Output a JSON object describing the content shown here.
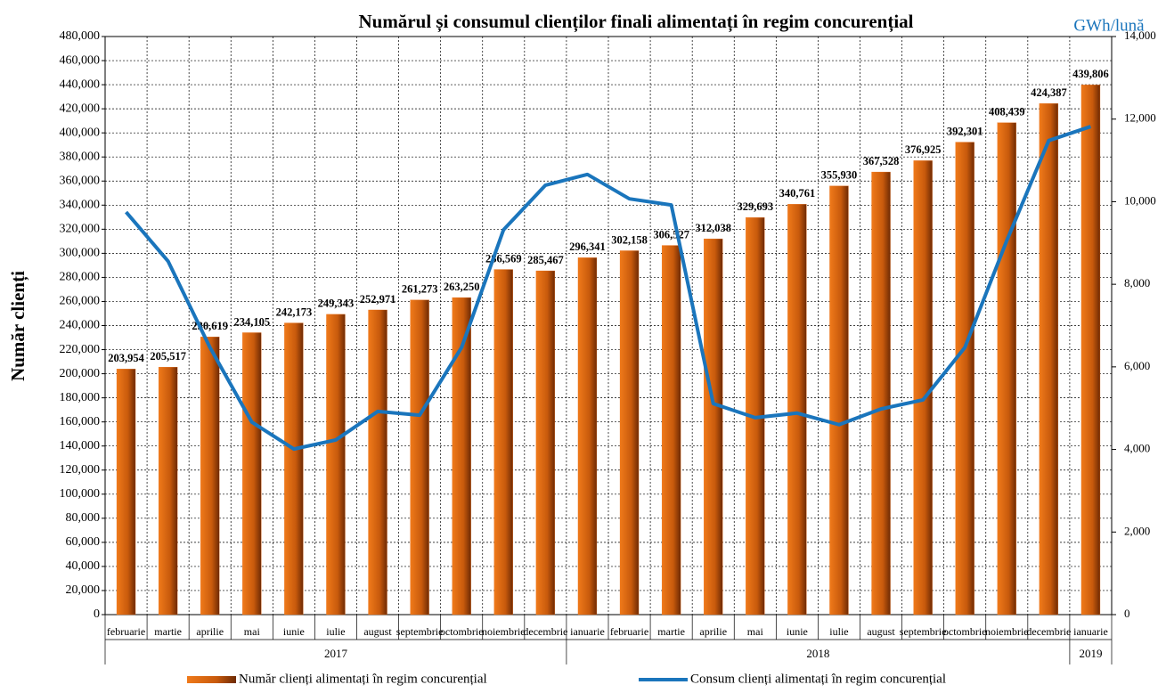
{
  "chart_data": {
    "type": "bar_line",
    "title": "Numărul și consumul clienților finali alimentați în regim concurențial",
    "ylabel": "Număr clienți",
    "y2label": "GWh/lună",
    "categories": [
      "februarie",
      "martie",
      "aprilie",
      "mai",
      "iunie",
      "iulie",
      "august",
      "septembrie",
      "octombrie",
      "noiembrie",
      "decembrie",
      "ianuarie",
      "februarie",
      "martie",
      "aprilie",
      "mai",
      "iunie",
      "iulie",
      "august",
      "septembrie",
      "octombrie",
      "noiembrie",
      "decembrie",
      "ianuarie"
    ],
    "year_groups": [
      {
        "label": "2017",
        "span": 11
      },
      {
        "label": "2018",
        "span": 12
      },
      {
        "label": "2019",
        "span": 1
      }
    ],
    "series": [
      {
        "name": "Număr clienți alimentați în regim concurențial",
        "color": "#e8680f",
        "kind": "bar",
        "values": [
          203954,
          205517,
          230619,
          234105,
          242173,
          249343,
          252971,
          261273,
          263250,
          286569,
          285467,
          296341,
          302158,
          306527,
          312038,
          329693,
          340761,
          355930,
          367528,
          376925,
          392301,
          408439,
          424387,
          439806
        ],
        "value_labels": [
          "203,954",
          "205,517",
          "230,619",
          "234,105",
          "242,173",
          "249,343",
          "252,971",
          "261,273",
          "263,250",
          "286,569",
          "285,467",
          "296,341",
          "302,158",
          "306,527",
          "312,038",
          "329,693",
          "340,761",
          "355,930",
          "367,528",
          "376,925",
          "392,301",
          "408,439",
          "424,387",
          "439,806"
        ]
      },
      {
        "name": "Consum clienți alimentați în regim concurențial",
        "color": "#1a75bc",
        "kind": "line",
        "axis": "y2",
        "values": [
          9750,
          8560,
          6470,
          4660,
          4010,
          4230,
          4920,
          4830,
          6470,
          9320,
          10400,
          10660,
          10070,
          9920,
          5110,
          4770,
          4880,
          4600,
          4980,
          5200,
          6470,
          9060,
          11480,
          11820
        ]
      }
    ],
    "ylim": [
      0,
      480000
    ],
    "yticks": [
      0,
      {
        "value": 20000,
        "label": "20,000"
      },
      {
        "value": 40000,
        "label": "40,000"
      },
      {
        "value": 60000,
        "label": "60,000"
      },
      {
        "value": 80000,
        "label": "80,000"
      },
      {
        "value": 100000,
        "label": "100,000"
      },
      {
        "value": 120000,
        "label": "120,000"
      },
      {
        "value": 140000,
        "label": "140,000"
      },
      {
        "value": 160000,
        "label": "160,000"
      },
      {
        "value": 180000,
        "label": "180,000"
      },
      {
        "value": 200000,
        "label": "200,000"
      },
      {
        "value": 220000,
        "label": "220,000"
      },
      {
        "value": 240000,
        "label": "240,000"
      },
      {
        "value": 260000,
        "label": "260,000"
      },
      {
        "value": 280000,
        "label": "280,000"
      },
      {
        "value": 300000,
        "label": "300,000"
      },
      {
        "value": 320000,
        "label": "320,000"
      },
      {
        "value": 340000,
        "label": "340,000"
      },
      {
        "value": 360000,
        "label": "360,000"
      },
      {
        "value": 380000,
        "label": "380,000"
      },
      {
        "value": 400000,
        "label": "400,000"
      },
      {
        "value": 420000,
        "label": "420,000"
      },
      {
        "value": 440000,
        "label": "440,000"
      },
      {
        "value": 460000,
        "label": "460,000"
      },
      {
        "value": 480000,
        "label": "480,000"
      }
    ],
    "y2lim": [
      0,
      14000
    ],
    "y2ticks": [
      0,
      {
        "value": 2000,
        "label": "2,000"
      },
      {
        "value": 4000,
        "label": "4,000"
      },
      {
        "value": 6000,
        "label": "6,000"
      },
      {
        "value": 8000,
        "label": "8,000"
      },
      {
        "value": 10000,
        "label": "10,000"
      },
      {
        "value": 12000,
        "label": "12,000"
      },
      {
        "value": 14000,
        "label": "14,000"
      }
    ],
    "grid": true
  }
}
